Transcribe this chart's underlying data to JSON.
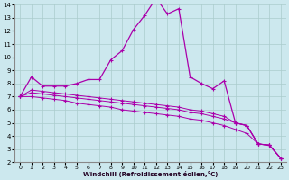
{
  "xlabel": "Windchill (Refroidissement éolien,°C)",
  "bg_color": "#cce8ee",
  "line_color": "#aa00aa",
  "grid_color": "#aacccc",
  "x_values": [
    0,
    1,
    2,
    3,
    4,
    5,
    6,
    7,
    8,
    9,
    10,
    11,
    12,
    13,
    14,
    15,
    16,
    17,
    18,
    19,
    20,
    21,
    22,
    23
  ],
  "series1_y": [
    7.0,
    8.5,
    7.8,
    7.8,
    7.8,
    8.0,
    8.3,
    8.3,
    9.8,
    10.5,
    12.1,
    13.2,
    14.5,
    13.3,
    13.7,
    8.5,
    8.0,
    7.6,
    8.2,
    5.0,
    4.8,
    3.4,
    3.3,
    2.3
  ],
  "series2_y": [
    7.0,
    7.5,
    7.4,
    7.3,
    7.2,
    7.1,
    7.0,
    6.9,
    6.8,
    6.7,
    6.6,
    6.5,
    6.4,
    6.3,
    6.2,
    6.0,
    5.9,
    5.7,
    5.5,
    5.0,
    4.8,
    3.4,
    3.3,
    2.3
  ],
  "series3_y": [
    7.0,
    7.3,
    7.2,
    7.1,
    7.0,
    6.9,
    6.8,
    6.7,
    6.6,
    6.5,
    6.4,
    6.3,
    6.2,
    6.1,
    6.0,
    5.8,
    5.7,
    5.5,
    5.3,
    5.0,
    4.8,
    3.4,
    3.3,
    2.3
  ],
  "series4_y": [
    7.0,
    7.0,
    6.9,
    6.8,
    6.7,
    6.5,
    6.4,
    6.3,
    6.2,
    6.0,
    5.9,
    5.8,
    5.7,
    5.6,
    5.5,
    5.3,
    5.2,
    5.0,
    4.8,
    4.5,
    4.2,
    3.4,
    3.3,
    2.3
  ],
  "xlim": [
    -0.5,
    23.5
  ],
  "ylim": [
    2,
    14
  ],
  "yticks": [
    2,
    3,
    4,
    5,
    6,
    7,
    8,
    9,
    10,
    11,
    12,
    13,
    14
  ],
  "xticks": [
    0,
    1,
    2,
    3,
    4,
    5,
    6,
    7,
    8,
    9,
    10,
    11,
    12,
    13,
    14,
    15,
    16,
    17,
    18,
    19,
    20,
    21,
    22,
    23
  ]
}
